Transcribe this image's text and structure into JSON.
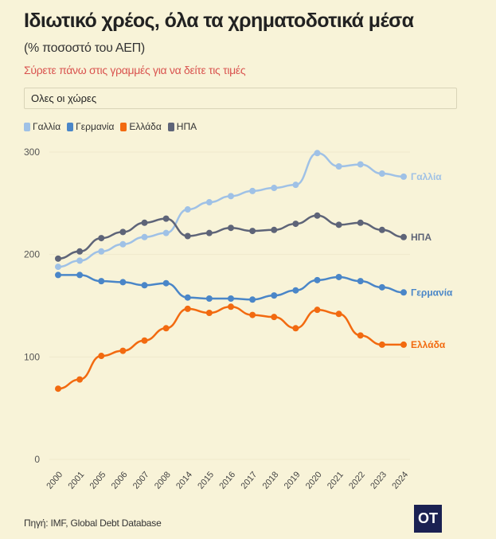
{
  "header": {
    "title": "Ιδιωτικό χρέος, όλα τα χρηματοδοτικά μέσα",
    "subtitle": "(% ποσοστό του ΑΕΠ)",
    "hint": "Σύρετε πάνω στις γραμμές για να δείτε τις τιμές",
    "hint_color": "#d9534f"
  },
  "filter": {
    "selected": "Ολες οι χώρες"
  },
  "footer": {
    "source": "Πηγή: IMF, Global Debt Database",
    "logo_text": "OT",
    "logo_color": "#1b2152"
  },
  "chart_data": {
    "type": "line",
    "title": "Ιδιωτικό χρέος, όλα τα χρηματοδοτικά μέσα",
    "subtitle": "(% ποσοστό του ΑΕΠ)",
    "x": [
      "2000",
      "2001",
      "2005",
      "2006",
      "2007",
      "2008",
      "2014",
      "2015",
      "2016",
      "2017",
      "2018",
      "2019",
      "2020",
      "2021",
      "2022",
      "2023",
      "2024"
    ],
    "ylim": [
      0,
      300
    ],
    "yticks": [
      0,
      100,
      200,
      300
    ],
    "grid": true,
    "legend": "top-left",
    "series": [
      {
        "name": "Γαλλία",
        "color": "#9fc1e6",
        "values": [
          188,
          194,
          203,
          210,
          217,
          221,
          244,
          251,
          257,
          262,
          265,
          268,
          299,
          286,
          288,
          279,
          276
        ]
      },
      {
        "name": "Γερμανία",
        "color": "#4a86c8",
        "values": [
          180,
          180,
          174,
          173,
          170,
          172,
          158,
          157,
          157,
          156,
          160,
          165,
          175,
          178,
          174,
          168,
          163
        ]
      },
      {
        "name": "Ελλάδα",
        "color": "#f26a10",
        "values": [
          69,
          78,
          101,
          106,
          116,
          128,
          147,
          143,
          149,
          141,
          139,
          128,
          146,
          142,
          121,
          112,
          112
        ]
      },
      {
        "name": "ΗΠΑ",
        "color": "#5e6478",
        "values": [
          196,
          203,
          216,
          222,
          231,
          235,
          218,
          221,
          226,
          223,
          224,
          230,
          238,
          229,
          231,
          224,
          217
        ]
      }
    ]
  }
}
